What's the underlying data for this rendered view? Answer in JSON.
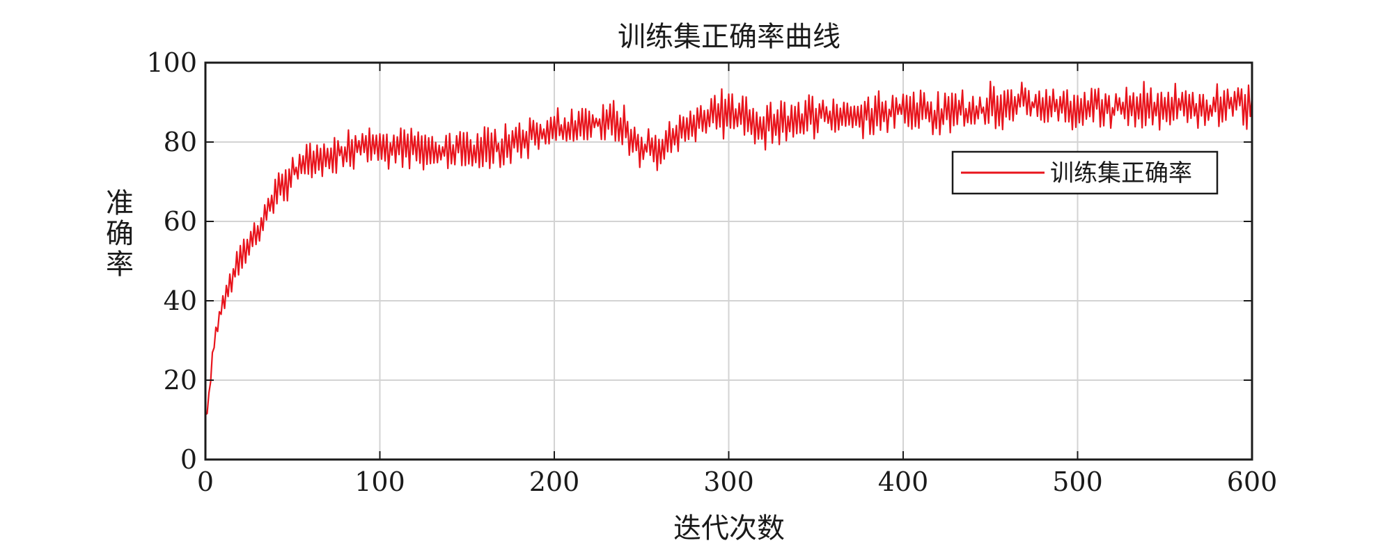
{
  "chart_data": {
    "type": "line",
    "title": "训练集正确率曲线",
    "xlabel": "迭代次数",
    "ylabel": "准确率",
    "xlim": [
      0,
      600
    ],
    "ylim": [
      0,
      100
    ],
    "xticks": [
      0,
      100,
      200,
      300,
      400,
      500,
      600
    ],
    "yticks": [
      0,
      20,
      40,
      60,
      80,
      100
    ],
    "grid": true,
    "legend_position": "right",
    "series": [
      {
        "name": "训练集正确率",
        "color": "#e8141c",
        "noise_amplitude": 5,
        "x": [
          0,
          2,
          5,
          10,
          15,
          20,
          30,
          40,
          50,
          60,
          70,
          80,
          90,
          100,
          110,
          120,
          130,
          140,
          150,
          160,
          170,
          180,
          190,
          200,
          210,
          220,
          230,
          240,
          250,
          260,
          270,
          280,
          290,
          300,
          310,
          320,
          330,
          340,
          350,
          360,
          370,
          380,
          390,
          400,
          410,
          420,
          430,
          440,
          450,
          460,
          470,
          480,
          490,
          500,
          510,
          520,
          530,
          540,
          550,
          560,
          570,
          580,
          590,
          600
        ],
        "y": [
          10,
          15,
          30,
          40,
          46,
          51,
          58,
          66,
          72,
          75,
          76,
          78,
          79,
          79,
          78,
          78,
          78,
          78,
          77,
          78,
          79,
          81,
          82,
          83,
          83,
          84,
          86,
          84,
          79,
          78,
          81,
          85,
          87,
          87,
          86,
          84,
          85,
          86,
          87,
          87,
          86,
          87,
          88,
          88,
          88,
          87,
          88,
          88,
          89,
          89,
          90,
          89,
          89,
          88,
          89,
          88,
          89,
          89,
          89,
          89,
          88,
          89,
          90,
          89
        ]
      }
    ]
  }
}
